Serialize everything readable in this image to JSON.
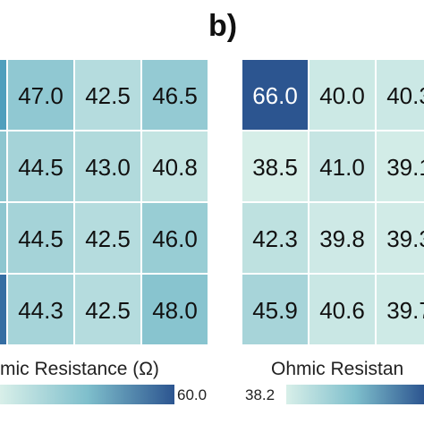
{
  "panel_label": "b)",
  "chart_data": [
    {
      "type": "heatmap",
      "panel": "a",
      "rows": 4,
      "columns_visible": 4,
      "values": [
        [
          null,
          47.0,
          42.5,
          46.5
        ],
        [
          null,
          44.5,
          43.0,
          40.8
        ],
        [
          null,
          44.5,
          42.5,
          46.0
        ],
        [
          null,
          44.3,
          42.5,
          48.0
        ]
      ],
      "labels": [
        [
          "",
          "47.0",
          "42.5",
          "46.5"
        ],
        [
          "",
          "44.5",
          "43.0",
          "40.8"
        ],
        [
          "",
          "44.5",
          "42.5",
          "46.0"
        ],
        [
          "",
          "44.3",
          "42.5",
          "48.0"
        ]
      ],
      "colorbar": {
        "title": "mic Resistance (Ω)",
        "max_label": "60.0",
        "min": 38.2,
        "max": 60.0
      }
    },
    {
      "type": "heatmap",
      "panel": "b",
      "rows": 4,
      "columns_visible": 3,
      "values": [
        [
          66.0,
          40.0,
          40.3
        ],
        [
          38.5,
          41.0,
          39.1
        ],
        [
          42.3,
          39.8,
          39.3
        ],
        [
          45.9,
          40.6,
          39.7
        ]
      ],
      "labels": [
        [
          "66.0",
          "40.0",
          "40.3"
        ],
        [
          "38.5",
          "41.0",
          "39.1"
        ],
        [
          "42.3",
          "39.8",
          "39.3"
        ],
        [
          "45.9",
          "40.6",
          "39.7"
        ]
      ],
      "colorbar": {
        "title": "Ohmic Resistan",
        "min_label": "38.2",
        "min": 38.2,
        "max": 66.0
      }
    }
  ],
  "colors": {
    "low": "#d8efe9",
    "mid": "#7fbfcc",
    "high": "#2c5590"
  }
}
